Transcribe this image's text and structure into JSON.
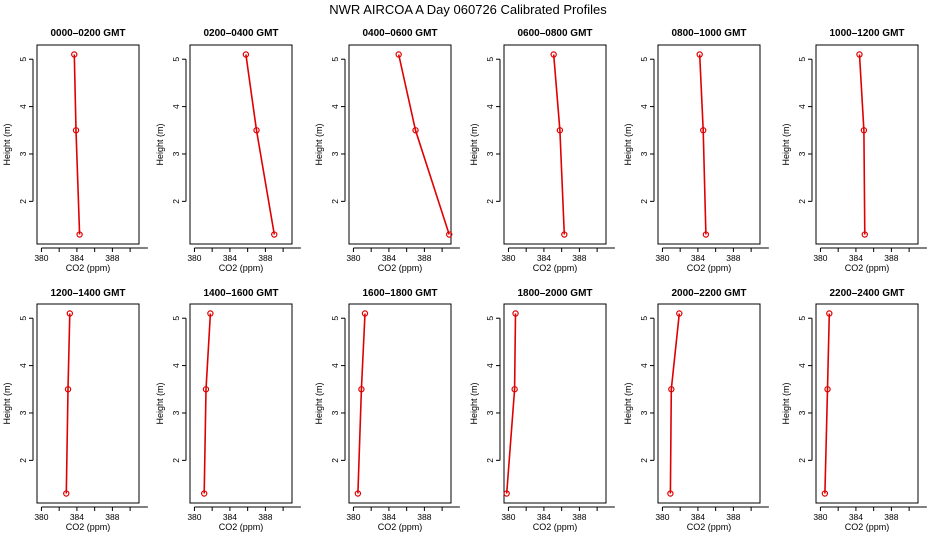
{
  "title": "NWR AIRCOA A  Day 060726  Calibrated Profiles",
  "chart_data": {
    "type": "line",
    "xlabel": "CO2 (ppm)",
    "ylabel": "Height (m)",
    "xlim": [
      379.5,
      391.0
    ],
    "ylim": [
      1.1,
      5.3
    ],
    "xticks": [
      380,
      384,
      388
    ],
    "yticks": [
      2,
      3,
      4,
      5
    ],
    "line_color": "#e00000",
    "panels": [
      {
        "title": "0000–0200 GMT",
        "x": [
          383.7,
          383.9,
          384.3
        ],
        "y": [
          5.1,
          3.5,
          1.3
        ]
      },
      {
        "title": "0200–0400 GMT",
        "x": [
          385.8,
          387.0,
          389.0
        ],
        "y": [
          5.1,
          3.5,
          1.3
        ]
      },
      {
        "title": "0400–0600 GMT",
        "x": [
          385.1,
          387.0,
          390.8
        ],
        "y": [
          5.1,
          3.5,
          1.3
        ]
      },
      {
        "title": "0600–0800 GMT",
        "x": [
          385.1,
          385.8,
          386.3
        ],
        "y": [
          5.1,
          3.5,
          1.3
        ]
      },
      {
        "title": "0800–1000 GMT",
        "x": [
          384.2,
          384.6,
          384.9
        ],
        "y": [
          5.1,
          3.5,
          1.3
        ]
      },
      {
        "title": "1000–1200 GMT",
        "x": [
          384.4,
          384.9,
          385.0
        ],
        "y": [
          5.1,
          3.5,
          1.3
        ]
      },
      {
        "title": "1200–1400 GMT",
        "x": [
          383.2,
          383.0,
          382.8
        ],
        "y": [
          5.1,
          3.5,
          1.3
        ]
      },
      {
        "title": "1400–1600 GMT",
        "x": [
          381.8,
          381.3,
          381.1
        ],
        "y": [
          5.1,
          3.5,
          1.3
        ]
      },
      {
        "title": "1600–1800 GMT",
        "x": [
          381.3,
          380.9,
          380.5
        ],
        "y": [
          5.1,
          3.5,
          1.3
        ]
      },
      {
        "title": "1800–2000 GMT",
        "x": [
          380.8,
          380.7,
          379.8
        ],
        "y": [
          5.1,
          3.5,
          1.3
        ]
      },
      {
        "title": "2000–2200 GMT",
        "x": [
          381.9,
          381.0,
          380.9
        ],
        "y": [
          5.1,
          3.5,
          1.3
        ]
      },
      {
        "title": "2200–2400 GMT",
        "x": [
          381.0,
          380.8,
          380.5
        ],
        "y": [
          5.1,
          3.5,
          1.3
        ]
      }
    ]
  }
}
